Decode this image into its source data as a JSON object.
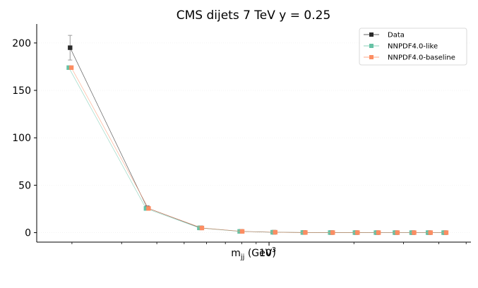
{
  "chart_data": {
    "type": "line",
    "title": "CMS dijets 7 TeV y = 0.25",
    "xlabel": "m_jj (GeV)",
    "xlabel_main": "m",
    "xlabel_sub": "jj",
    "xlabel_unit": " (GeV)",
    "ylabel": "",
    "xscale": "log",
    "ylim": [
      -10,
      220
    ],
    "yticks": [
      0,
      50,
      100,
      150,
      200
    ],
    "xticks_major": [
      1000
    ],
    "xtick_major_labels": [
      {
        "base": "10",
        "exp": "3"
      }
    ],
    "legend_position": "top-right",
    "grid": false,
    "x": [
      197,
      370,
      572,
      795,
      1041,
      1331,
      1665,
      2038,
      2420,
      2824,
      3236,
      3700,
      4205
    ],
    "series": [
      {
        "name": "Data",
        "color": "#2b2b2b",
        "values": [
          195,
          26,
          5,
          1.3,
          0.4,
          0.15,
          0.06,
          0.03,
          0.012,
          0.006,
          0.003,
          0.001,
          0.0005
        ],
        "errors": [
          13,
          1.2,
          0.3,
          0.1,
          0.04,
          0.02,
          0.01,
          0.005,
          0.003,
          0.002,
          0.001,
          0.0005,
          0.0003
        ]
      },
      {
        "name": "NNPDF4.0-like",
        "color": "#66c2a5",
        "values": [
          174,
          25.5,
          5,
          1.3,
          0.4,
          0.15,
          0.06,
          0.03,
          0.012,
          0.006,
          0.003,
          0.001,
          0.0005
        ]
      },
      {
        "name": "NNPDF4.0-baseline",
        "color": "#fc8d62",
        "values": [
          174,
          25.5,
          4.9,
          1.3,
          0.4,
          0.15,
          0.06,
          0.03,
          0.012,
          0.006,
          0.003,
          0.001,
          0.0005
        ]
      }
    ]
  }
}
